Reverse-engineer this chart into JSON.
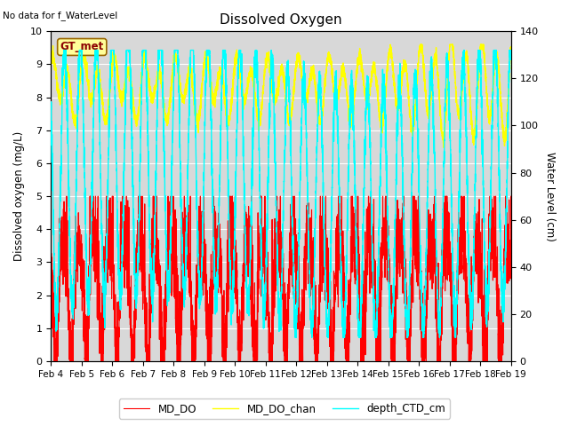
{
  "title": "Dissolved Oxygen",
  "top_left_text": "No data for f_WaterLevel",
  "ylabel_left": "Dissolved oxygen (mg/L)",
  "ylabel_right": "Water Level (cm)",
  "ylim_left": [
    0.0,
    10.0
  ],
  "ylim_right": [
    0,
    140
  ],
  "yticks_left": [
    0.0,
    1.0,
    2.0,
    3.0,
    4.0,
    5.0,
    6.0,
    7.0,
    8.0,
    9.0,
    10.0
  ],
  "yticks_right": [
    0,
    20,
    40,
    60,
    80,
    100,
    120,
    140
  ],
  "colors": {
    "MD_DO": "#ff0000",
    "MD_DO_chan": "#ffff00",
    "depth_CTD_cm": "#00ffff"
  },
  "background_color": "#d8d8d8",
  "legend_label_MD_DO": "MD_DO",
  "legend_label_MD_DO_chan": "MD_DO_chan",
  "legend_label_depth_CTD_cm": "depth_CTD_cm",
  "gt_met_label": "GT_met",
  "gt_met_bg": "#ffff99",
  "gt_met_border": "#996600",
  "n_days": 15,
  "n_points": 5000
}
